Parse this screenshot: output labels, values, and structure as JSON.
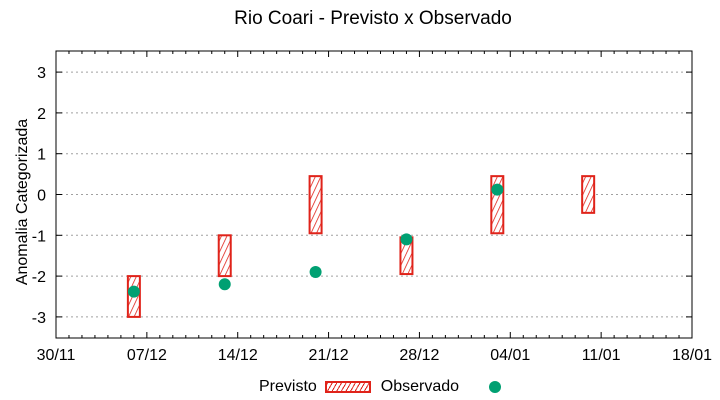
{
  "chart_data": {
    "type": "boxes+scatter",
    "title": "Rio Coari - Previsto x Observado",
    "xlabel": "",
    "ylabel": "Anomalia Categorizada",
    "ylim": [
      -3.5,
      3.5
    ],
    "y_ticks": [
      3,
      2,
      1,
      0,
      -1,
      -2,
      -3
    ],
    "x_ticks": [
      "30/11",
      "07/12",
      "14/12",
      "21/12",
      "28/12",
      "04/01",
      "11/01",
      "18/01"
    ],
    "grid": "horizontal dotted",
    "legend_position": "bottom",
    "series": [
      {
        "name": "Previsto",
        "type": "range-box",
        "color": "#e0231a",
        "points": [
          {
            "x": "06/12",
            "low": -3.0,
            "high": -2.0
          },
          {
            "x": "13/12",
            "low": -2.0,
            "high": -1.0
          },
          {
            "x": "20/12",
            "low": -0.95,
            "high": 0.45
          },
          {
            "x": "27/12",
            "low": -1.95,
            "high": -1.05
          },
          {
            "x": "03/01",
            "low": -0.95,
            "high": 0.45
          },
          {
            "x": "10/01",
            "low": -0.45,
            "high": 0.45
          }
        ]
      },
      {
        "name": "Observado",
        "type": "scatter",
        "color": "#00a072",
        "points": [
          {
            "x": "06/12",
            "y": -2.38
          },
          {
            "x": "13/12",
            "y": -2.2
          },
          {
            "x": "20/12",
            "y": -1.9
          },
          {
            "x": "27/12",
            "y": -1.1
          },
          {
            "x": "03/01",
            "y": 0.12
          }
        ]
      }
    ]
  },
  "legend": {
    "previsto_label": "Previsto",
    "observado_label": "Observado"
  },
  "colors": {
    "previsto": "#e0231a",
    "observado": "#00a072",
    "grid": "#a0a0a0"
  }
}
